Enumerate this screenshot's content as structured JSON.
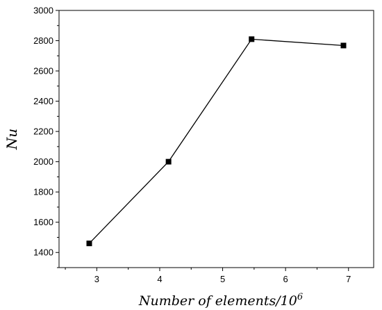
{
  "chart_data": {
    "type": "line",
    "title": "",
    "xlabel_text": "Number of elements/10",
    "xlabel_sup": "6",
    "ylabel": "Nu",
    "x": [
      2.88,
      4.14,
      5.46,
      6.92
    ],
    "series": [
      {
        "values": [
          1460,
          2000,
          2810,
          2768
        ]
      }
    ],
    "xlim": [
      2.4,
      7.4
    ],
    "ylim": [
      1300,
      3000
    ],
    "xticks": [
      3,
      4,
      5,
      6,
      7
    ],
    "yticks": [
      1400,
      1600,
      1800,
      2000,
      2200,
      2400,
      2600,
      2800,
      3000
    ],
    "grid": false,
    "legend": "none",
    "line_color": "#000000",
    "marker": "square"
  }
}
